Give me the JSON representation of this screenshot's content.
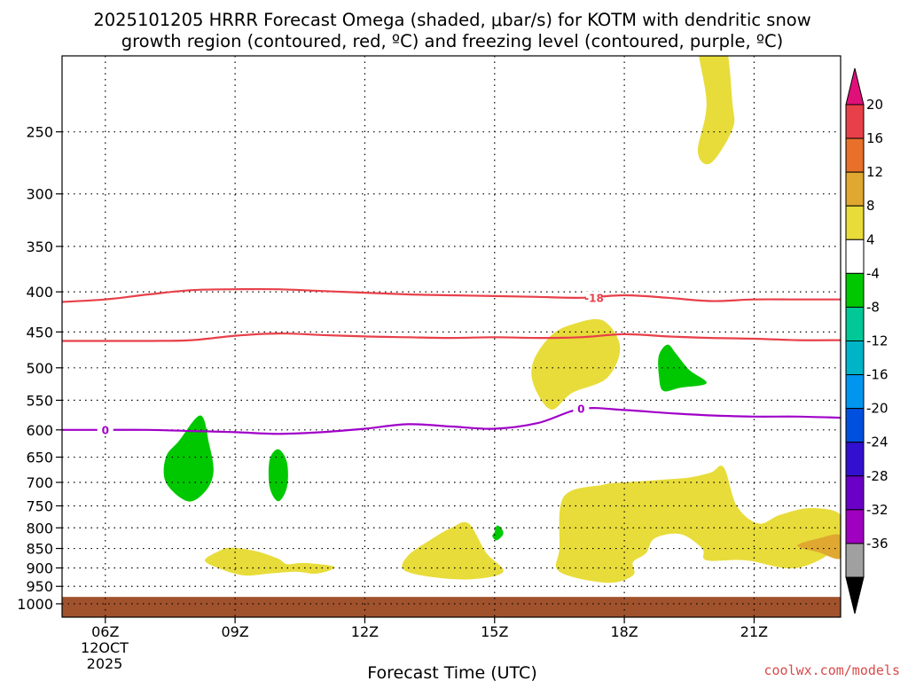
{
  "chart_data": {
    "type": "heatmap",
    "title_line1": "2025101205 HRRR Forecast Omega (shaded, μbar/s) for KOTM with dendritic snow",
    "title_line2": "growth region (contoured, red, ºC) and freezing level (contoured, purple, ºC)",
    "xlabel": "Forecast Time (UTC)",
    "credit": "coolwx.com/models",
    "x_ticks": [
      {
        "label": "06Z",
        "hour": 6
      },
      {
        "label": "09Z",
        "hour": 9
      },
      {
        "label": "12Z",
        "hour": 12
      },
      {
        "label": "15Z",
        "hour": 15
      },
      {
        "label": "18Z",
        "hour": 18
      },
      {
        "label": "21Z",
        "hour": 21
      }
    ],
    "date_label_line1": "12OCT",
    "date_label_line2": "2025",
    "xlim": [
      5,
      23
    ],
    "y_axis_unit": "hPa",
    "y_scale": "log",
    "ylim": [
      1040,
      200
    ],
    "y_ticks": [
      250,
      300,
      350,
      400,
      450,
      500,
      550,
      600,
      650,
      700,
      750,
      800,
      850,
      900,
      950,
      1000
    ],
    "grid": true,
    "surface": {
      "color": "#a0522d",
      "pressure_hPa": 980
    },
    "colorbar": {
      "levels": [
        {
          "label": "20",
          "color": "#e8404a"
        },
        {
          "label": "16",
          "color": "#e8702a"
        },
        {
          "label": "12",
          "color": "#e0a830"
        },
        {
          "label": "8",
          "color": "#e8dc3a"
        },
        {
          "label": "4",
          "color": "#ffffff"
        },
        {
          "label": "-4",
          "color": "#00c800"
        },
        {
          "label": "-8",
          "color": "#00c896"
        },
        {
          "label": "-12",
          "color": "#00b4c8"
        },
        {
          "label": "-16",
          "color": "#0096f0"
        },
        {
          "label": "-20",
          "color": "#0050e0"
        },
        {
          "label": "-24",
          "color": "#3210d0"
        },
        {
          "label": "-28",
          "color": "#6a00c8"
        },
        {
          "label": "-32",
          "color": "#a000c0"
        },
        {
          "label": "-36",
          "color": "#a0a0a0"
        }
      ],
      "top_color": "#e0107a",
      "bottom_color": "#000000"
    },
    "contours": [
      {
        "name": "dgz-upper",
        "color": "#e8404a",
        "label": "-18",
        "label_hour": 17.3,
        "points": [
          [
            5,
            412
          ],
          [
            6,
            409
          ],
          [
            7,
            403
          ],
          [
            8,
            398
          ],
          [
            9,
            397
          ],
          [
            10,
            397
          ],
          [
            11,
            399
          ],
          [
            12,
            401
          ],
          [
            13,
            403
          ],
          [
            14,
            404
          ],
          [
            15,
            405
          ],
          [
            16,
            406
          ],
          [
            17,
            407
          ],
          [
            18,
            404
          ],
          [
            19,
            407
          ],
          [
            20,
            411
          ],
          [
            21,
            409
          ],
          [
            22,
            409
          ],
          [
            23,
            409
          ]
        ]
      },
      {
        "name": "dgz-lower",
        "color": "#e8404a",
        "points": [
          [
            5,
            462
          ],
          [
            6,
            462
          ],
          [
            7,
            462
          ],
          [
            8,
            461
          ],
          [
            9,
            455
          ],
          [
            10,
            452
          ],
          [
            11,
            454
          ],
          [
            12,
            456
          ],
          [
            13,
            457
          ],
          [
            14,
            458
          ],
          [
            15,
            457
          ],
          [
            16,
            458
          ],
          [
            17,
            457
          ],
          [
            18,
            453
          ],
          [
            19,
            456
          ],
          [
            20,
            458
          ],
          [
            21,
            459
          ],
          [
            22,
            461
          ],
          [
            23,
            461
          ]
        ]
      },
      {
        "name": "freezing-level",
        "color": "#a000c8",
        "label": "0",
        "label_hour": 17,
        "points": [
          [
            5,
            600
          ],
          [
            6,
            600
          ],
          [
            7,
            600
          ],
          [
            8,
            602
          ],
          [
            9,
            604
          ],
          [
            10,
            607
          ],
          [
            11,
            604
          ],
          [
            12,
            598
          ],
          [
            13,
            590
          ],
          [
            14,
            594
          ],
          [
            15,
            598
          ],
          [
            16,
            588
          ],
          [
            17,
            564
          ],
          [
            18,
            566
          ],
          [
            19,
            571
          ],
          [
            20,
            575
          ],
          [
            21,
            577
          ],
          [
            22,
            577
          ],
          [
            23,
            579
          ]
        ]
      }
    ],
    "regions": [
      {
        "name": "upward-motion-area",
        "color": "#e8dc3a",
        "points": [
          [
            19.7,
            190
          ],
          [
            19.9,
            230
          ],
          [
            19.7,
            265
          ],
          [
            20.0,
            274
          ],
          [
            20.5,
            248
          ],
          [
            20.5,
            230
          ],
          [
            20.3,
            190
          ]
        ]
      },
      {
        "name": "upward-motion-area",
        "color": "#e8dc3a",
        "points": [
          [
            16.3,
            455
          ],
          [
            16.8,
            440
          ],
          [
            17.5,
            435
          ],
          [
            17.9,
            470
          ],
          [
            17.6,
            515
          ],
          [
            16.8,
            538
          ],
          [
            16.3,
            565
          ],
          [
            15.9,
            525
          ],
          [
            15.9,
            490
          ]
        ]
      },
      {
        "name": "upward-motion-area",
        "color": "#e8dc3a",
        "points": [
          [
            16.6,
            730
          ],
          [
            17.5,
            705
          ],
          [
            18.0,
            700
          ],
          [
            18.8,
            695
          ],
          [
            19.5,
            690
          ],
          [
            20.0,
            680
          ],
          [
            20.3,
            670
          ],
          [
            20.6,
            750
          ],
          [
            21.1,
            790
          ],
          [
            21.6,
            770
          ],
          [
            22.3,
            755
          ],
          [
            23.0,
            770
          ],
          [
            23.0,
            840
          ],
          [
            22.0,
            900
          ],
          [
            20.8,
            880
          ],
          [
            19.9,
            880
          ],
          [
            19.8,
            850
          ],
          [
            19.3,
            815
          ],
          [
            18.7,
            825
          ],
          [
            18.5,
            862
          ],
          [
            18.2,
            885
          ],
          [
            18.2,
            920
          ],
          [
            17.6,
            940
          ],
          [
            16.5,
            910
          ],
          [
            16.5,
            850
          ]
        ]
      },
      {
        "name": "upward-motion-area",
        "color": "#e8dc3a",
        "points": [
          [
            13.0,
            868
          ],
          [
            13.5,
            830
          ],
          [
            14.0,
            800
          ],
          [
            14.4,
            790
          ],
          [
            14.8,
            860
          ],
          [
            15.2,
            910
          ],
          [
            14.5,
            930
          ],
          [
            13.6,
            925
          ],
          [
            12.9,
            905
          ]
        ]
      },
      {
        "name": "upward-motion-area",
        "color": "#e8dc3a",
        "points": [
          [
            8.3,
            880
          ],
          [
            8.6,
            858
          ],
          [
            8.9,
            848
          ],
          [
            9.5,
            857
          ],
          [
            10.0,
            876
          ],
          [
            10.2,
            890
          ],
          [
            10.6,
            887
          ],
          [
            11.3,
            897
          ],
          [
            10.9,
            915
          ],
          [
            10.4,
            910
          ],
          [
            9.8,
            915
          ],
          [
            9.2,
            920
          ],
          [
            8.6,
            900
          ]
        ]
      },
      {
        "name": "strong-upward-motion-area",
        "color": "#e0a830",
        "points": [
          [
            22.0,
            843
          ],
          [
            22.5,
            825
          ],
          [
            23.0,
            818
          ],
          [
            23.0,
            875
          ],
          [
            22.5,
            860
          ]
        ]
      },
      {
        "name": "downward-motion-area",
        "color": "#00c800",
        "points": [
          [
            7.7,
            620
          ],
          [
            8.2,
            575
          ],
          [
            8.4,
            625
          ],
          [
            8.5,
            680
          ],
          [
            8.3,
            720
          ],
          [
            7.9,
            740
          ],
          [
            7.4,
            700
          ],
          [
            7.4,
            650
          ]
        ]
      },
      {
        "name": "downward-motion-area",
        "color": "#00c800",
        "points": [
          [
            9.8,
            655
          ],
          [
            10.0,
            635
          ],
          [
            10.2,
            660
          ],
          [
            10.2,
            710
          ],
          [
            10.0,
            740
          ],
          [
            9.8,
            710
          ]
        ]
      },
      {
        "name": "downward-motion-area",
        "color": "#00c800",
        "points": [
          [
            15.0,
            810
          ],
          [
            15.05,
            795
          ],
          [
            15.15,
            800
          ],
          [
            15.2,
            815
          ],
          [
            15.05,
            830
          ],
          [
            14.95,
            820
          ]
        ]
      },
      {
        "name": "downward-motion-area",
        "color": "#00c800",
        "points": [
          [
            18.8,
            482
          ],
          [
            19.0,
            467
          ],
          [
            19.2,
            480
          ],
          [
            19.5,
            503
          ],
          [
            19.9,
            523
          ],
          [
            19.3,
            530
          ],
          [
            18.9,
            535
          ],
          [
            18.8,
            512
          ]
        ]
      }
    ]
  }
}
